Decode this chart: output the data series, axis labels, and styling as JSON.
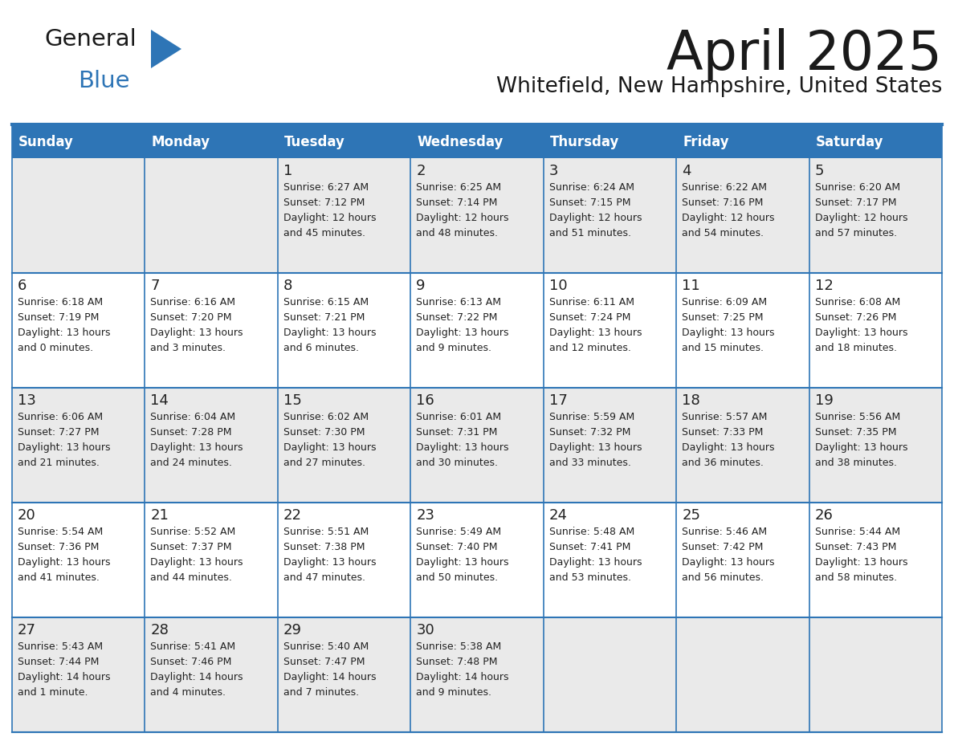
{
  "title": "April 2025",
  "subtitle": "Whitefield, New Hampshire, United States",
  "header_bg": "#2E75B6",
  "header_text_color": "#FFFFFF",
  "cell_bg_odd": "#EAEAEA",
  "cell_bg_even": "#FFFFFF",
  "border_color": "#2E75B6",
  "text_color": "#222222",
  "day_names": [
    "Sunday",
    "Monday",
    "Tuesday",
    "Wednesday",
    "Thursday",
    "Friday",
    "Saturday"
  ],
  "days": [
    {
      "date": 1,
      "col": 2,
      "row": 0,
      "sunrise": "6:27 AM",
      "sunset": "7:12 PM",
      "daylight_line1": "Daylight: 12 hours",
      "daylight_line2": "and 45 minutes."
    },
    {
      "date": 2,
      "col": 3,
      "row": 0,
      "sunrise": "6:25 AM",
      "sunset": "7:14 PM",
      "daylight_line1": "Daylight: 12 hours",
      "daylight_line2": "and 48 minutes."
    },
    {
      "date": 3,
      "col": 4,
      "row": 0,
      "sunrise": "6:24 AM",
      "sunset": "7:15 PM",
      "daylight_line1": "Daylight: 12 hours",
      "daylight_line2": "and 51 minutes."
    },
    {
      "date": 4,
      "col": 5,
      "row": 0,
      "sunrise": "6:22 AM",
      "sunset": "7:16 PM",
      "daylight_line1": "Daylight: 12 hours",
      "daylight_line2": "and 54 minutes."
    },
    {
      "date": 5,
      "col": 6,
      "row": 0,
      "sunrise": "6:20 AM",
      "sunset": "7:17 PM",
      "daylight_line1": "Daylight: 12 hours",
      "daylight_line2": "and 57 minutes."
    },
    {
      "date": 6,
      "col": 0,
      "row": 1,
      "sunrise": "6:18 AM",
      "sunset": "7:19 PM",
      "daylight_line1": "Daylight: 13 hours",
      "daylight_line2": "and 0 minutes."
    },
    {
      "date": 7,
      "col": 1,
      "row": 1,
      "sunrise": "6:16 AM",
      "sunset": "7:20 PM",
      "daylight_line1": "Daylight: 13 hours",
      "daylight_line2": "and 3 minutes."
    },
    {
      "date": 8,
      "col": 2,
      "row": 1,
      "sunrise": "6:15 AM",
      "sunset": "7:21 PM",
      "daylight_line1": "Daylight: 13 hours",
      "daylight_line2": "and 6 minutes."
    },
    {
      "date": 9,
      "col": 3,
      "row": 1,
      "sunrise": "6:13 AM",
      "sunset": "7:22 PM",
      "daylight_line1": "Daylight: 13 hours",
      "daylight_line2": "and 9 minutes."
    },
    {
      "date": 10,
      "col": 4,
      "row": 1,
      "sunrise": "6:11 AM",
      "sunset": "7:24 PM",
      "daylight_line1": "Daylight: 13 hours",
      "daylight_line2": "and 12 minutes."
    },
    {
      "date": 11,
      "col": 5,
      "row": 1,
      "sunrise": "6:09 AM",
      "sunset": "7:25 PM",
      "daylight_line1": "Daylight: 13 hours",
      "daylight_line2": "and 15 minutes."
    },
    {
      "date": 12,
      "col": 6,
      "row": 1,
      "sunrise": "6:08 AM",
      "sunset": "7:26 PM",
      "daylight_line1": "Daylight: 13 hours",
      "daylight_line2": "and 18 minutes."
    },
    {
      "date": 13,
      "col": 0,
      "row": 2,
      "sunrise": "6:06 AM",
      "sunset": "7:27 PM",
      "daylight_line1": "Daylight: 13 hours",
      "daylight_line2": "and 21 minutes."
    },
    {
      "date": 14,
      "col": 1,
      "row": 2,
      "sunrise": "6:04 AM",
      "sunset": "7:28 PM",
      "daylight_line1": "Daylight: 13 hours",
      "daylight_line2": "and 24 minutes."
    },
    {
      "date": 15,
      "col": 2,
      "row": 2,
      "sunrise": "6:02 AM",
      "sunset": "7:30 PM",
      "daylight_line1": "Daylight: 13 hours",
      "daylight_line2": "and 27 minutes."
    },
    {
      "date": 16,
      "col": 3,
      "row": 2,
      "sunrise": "6:01 AM",
      "sunset": "7:31 PM",
      "daylight_line1": "Daylight: 13 hours",
      "daylight_line2": "and 30 minutes."
    },
    {
      "date": 17,
      "col": 4,
      "row": 2,
      "sunrise": "5:59 AM",
      "sunset": "7:32 PM",
      "daylight_line1": "Daylight: 13 hours",
      "daylight_line2": "and 33 minutes."
    },
    {
      "date": 18,
      "col": 5,
      "row": 2,
      "sunrise": "5:57 AM",
      "sunset": "7:33 PM",
      "daylight_line1": "Daylight: 13 hours",
      "daylight_line2": "and 36 minutes."
    },
    {
      "date": 19,
      "col": 6,
      "row": 2,
      "sunrise": "5:56 AM",
      "sunset": "7:35 PM",
      "daylight_line1": "Daylight: 13 hours",
      "daylight_line2": "and 38 minutes."
    },
    {
      "date": 20,
      "col": 0,
      "row": 3,
      "sunrise": "5:54 AM",
      "sunset": "7:36 PM",
      "daylight_line1": "Daylight: 13 hours",
      "daylight_line2": "and 41 minutes."
    },
    {
      "date": 21,
      "col": 1,
      "row": 3,
      "sunrise": "5:52 AM",
      "sunset": "7:37 PM",
      "daylight_line1": "Daylight: 13 hours",
      "daylight_line2": "and 44 minutes."
    },
    {
      "date": 22,
      "col": 2,
      "row": 3,
      "sunrise": "5:51 AM",
      "sunset": "7:38 PM",
      "daylight_line1": "Daylight: 13 hours",
      "daylight_line2": "and 47 minutes."
    },
    {
      "date": 23,
      "col": 3,
      "row": 3,
      "sunrise": "5:49 AM",
      "sunset": "7:40 PM",
      "daylight_line1": "Daylight: 13 hours",
      "daylight_line2": "and 50 minutes."
    },
    {
      "date": 24,
      "col": 4,
      "row": 3,
      "sunrise": "5:48 AM",
      "sunset": "7:41 PM",
      "daylight_line1": "Daylight: 13 hours",
      "daylight_line2": "and 53 minutes."
    },
    {
      "date": 25,
      "col": 5,
      "row": 3,
      "sunrise": "5:46 AM",
      "sunset": "7:42 PM",
      "daylight_line1": "Daylight: 13 hours",
      "daylight_line2": "and 56 minutes."
    },
    {
      "date": 26,
      "col": 6,
      "row": 3,
      "sunrise": "5:44 AM",
      "sunset": "7:43 PM",
      "daylight_line1": "Daylight: 13 hours",
      "daylight_line2": "and 58 minutes."
    },
    {
      "date": 27,
      "col": 0,
      "row": 4,
      "sunrise": "5:43 AM",
      "sunset": "7:44 PM",
      "daylight_line1": "Daylight: 14 hours",
      "daylight_line2": "and 1 minute."
    },
    {
      "date": 28,
      "col": 1,
      "row": 4,
      "sunrise": "5:41 AM",
      "sunset": "7:46 PM",
      "daylight_line1": "Daylight: 14 hours",
      "daylight_line2": "and 4 minutes."
    },
    {
      "date": 29,
      "col": 2,
      "row": 4,
      "sunrise": "5:40 AM",
      "sunset": "7:47 PM",
      "daylight_line1": "Daylight: 14 hours",
      "daylight_line2": "and 7 minutes."
    },
    {
      "date": 30,
      "col": 3,
      "row": 4,
      "sunrise": "5:38 AM",
      "sunset": "7:48 PM",
      "daylight_line1": "Daylight: 14 hours",
      "daylight_line2": "and 9 minutes."
    }
  ]
}
